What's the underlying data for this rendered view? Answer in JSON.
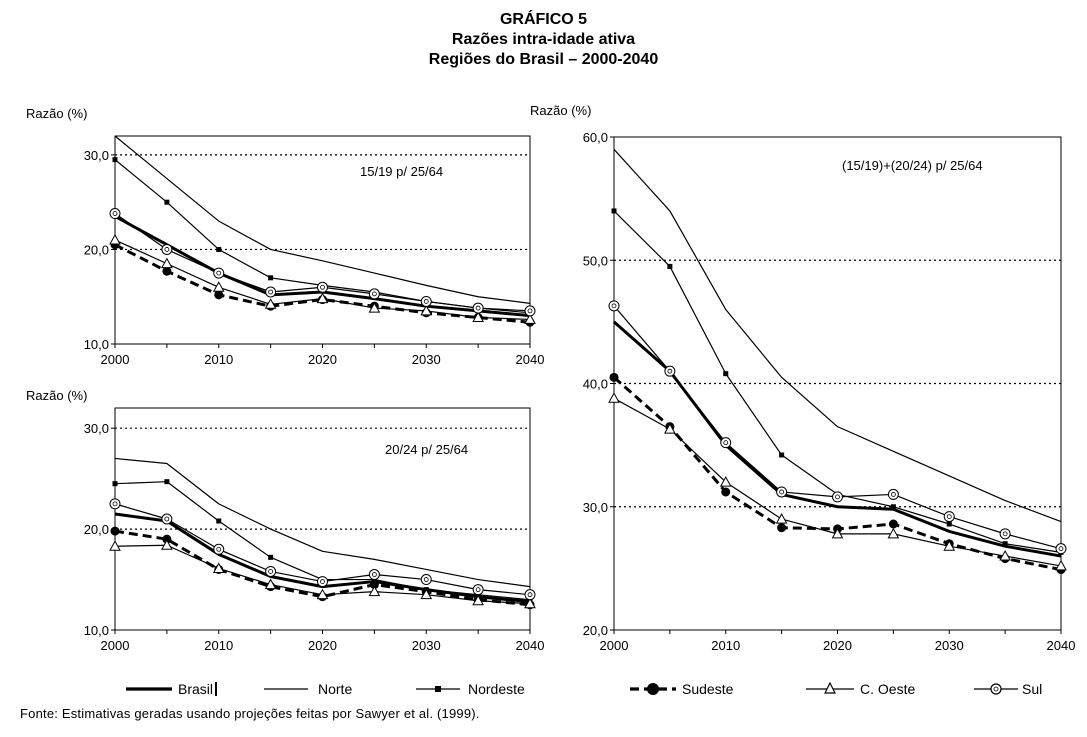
{
  "title": {
    "line1": "GRÁFICO 5",
    "line2": "Razões intra-idade ativa",
    "line3": "Regiões do Brasil – 2000-2040"
  },
  "source": "Fonte: Estimativas geradas usando projeções feitas por Sawyer et al. (1999).",
  "legend": [
    {
      "key": "Brasil",
      "label": "Brasil"
    },
    {
      "key": "Norte",
      "label": "Norte"
    },
    {
      "key": "Nordeste",
      "label": "Nordeste"
    },
    {
      "key": "Sudeste",
      "label": "Sudeste"
    },
    {
      "key": "COeste",
      "label": "C. Oeste"
    },
    {
      "key": "Sul",
      "label": "Sul"
    }
  ],
  "chart_data": [
    {
      "type": "line",
      "ylabel": "Razão (%)",
      "annotation": "15/19 p/ 25/64",
      "x": [
        2000,
        2005,
        2010,
        2015,
        2020,
        2025,
        2030,
        2035,
        2040
      ],
      "xticks": [
        "2000",
        "2010",
        "2020",
        "2030",
        "2040"
      ],
      "yticks": [
        "10,0",
        "20,0",
        "30,0"
      ],
      "ylim": [
        10,
        32
      ],
      "gridlines": [
        20,
        30
      ],
      "series": [
        {
          "name": "Brasil",
          "values": [
            23.5,
            20.5,
            17.5,
            15.2,
            15.5,
            14.8,
            14.0,
            13.5,
            13.0
          ]
        },
        {
          "name": "Norte",
          "values": [
            32.0,
            27.5,
            23.0,
            20.0,
            18.8,
            17.5,
            16.2,
            15.0,
            14.3
          ]
        },
        {
          "name": "Nordeste",
          "values": [
            29.5,
            25.0,
            20.0,
            17.0,
            16.2,
            15.5,
            14.5,
            13.8,
            13.3
          ]
        },
        {
          "name": "Sudeste",
          "values": [
            20.5,
            17.7,
            15.2,
            14.0,
            14.7,
            14.0,
            13.3,
            12.8,
            12.3
          ]
        },
        {
          "name": "C. Oeste",
          "values": [
            21.0,
            18.5,
            16.0,
            14.2,
            14.8,
            13.8,
            13.5,
            12.8,
            12.6
          ]
        },
        {
          "name": "Sul",
          "values": [
            23.8,
            20.0,
            17.5,
            15.5,
            16.0,
            15.3,
            14.5,
            13.8,
            13.5
          ]
        }
      ]
    },
    {
      "type": "line",
      "ylabel": "Razão (%)",
      "annotation": "20/24 p/ 25/64",
      "x": [
        2000,
        2005,
        2010,
        2015,
        2020,
        2025,
        2030,
        2035,
        2040
      ],
      "xticks": [
        "2000",
        "2010",
        "2020",
        "2030",
        "2040"
      ],
      "yticks": [
        "10,0",
        "20,0",
        "30,0"
      ],
      "ylim": [
        10,
        32
      ],
      "gridlines": [
        20,
        30
      ],
      "series": [
        {
          "name": "Brasil",
          "values": [
            21.5,
            20.8,
            17.5,
            15.3,
            14.3,
            14.8,
            14.0,
            13.3,
            12.8
          ]
        },
        {
          "name": "Norte",
          "values": [
            27.0,
            26.5,
            22.5,
            20.0,
            17.8,
            17.0,
            16.0,
            15.0,
            14.3
          ]
        },
        {
          "name": "Nordeste",
          "values": [
            24.5,
            24.7,
            20.8,
            17.2,
            15.0,
            15.0,
            14.0,
            13.5,
            13.0
          ]
        },
        {
          "name": "Sudeste",
          "values": [
            19.8,
            19.0,
            16.0,
            14.3,
            13.3,
            14.5,
            13.8,
            13.0,
            12.5
          ]
        },
        {
          "name": "C. Oeste",
          "values": [
            18.3,
            18.4,
            16.1,
            14.5,
            13.5,
            13.8,
            13.5,
            12.9,
            12.6
          ]
        },
        {
          "name": "Sul",
          "values": [
            22.5,
            21.0,
            18.0,
            15.8,
            14.8,
            15.5,
            15.0,
            14.0,
            13.5
          ]
        }
      ]
    },
    {
      "type": "line",
      "ylabel": "Razão (%)",
      "annotation": "(15/19)+(20/24) p/ 25/64",
      "x": [
        2000,
        2005,
        2010,
        2015,
        2020,
        2025,
        2030,
        2035,
        2040
      ],
      "xticks": [
        "2000",
        "2010",
        "2020",
        "2030",
        "2040"
      ],
      "yticks": [
        "20,0",
        "30,0",
        "40,0",
        "50,0",
        "60,0"
      ],
      "ylim": [
        20,
        60
      ],
      "gridlines": [
        30,
        40,
        50
      ],
      "series": [
        {
          "name": "Brasil",
          "values": [
            45.0,
            41.0,
            35.0,
            31.0,
            30.0,
            29.8,
            28.0,
            26.8,
            26.0
          ]
        },
        {
          "name": "Norte",
          "values": [
            59.0,
            54.0,
            46.0,
            40.5,
            36.5,
            34.5,
            32.5,
            30.5,
            28.8
          ]
        },
        {
          "name": "Nordeste",
          "values": [
            54.0,
            49.5,
            40.8,
            34.2,
            31.0,
            30.0,
            28.6,
            27.0,
            26.3
          ]
        },
        {
          "name": "Sudeste",
          "values": [
            40.5,
            36.5,
            31.2,
            28.3,
            28.2,
            28.6,
            27.0,
            25.8,
            24.9
          ]
        },
        {
          "name": "C. Oeste",
          "values": [
            38.8,
            36.3,
            32.0,
            29.0,
            27.8,
            27.8,
            26.8,
            26.0,
            25.2
          ]
        },
        {
          "name": "Sul",
          "values": [
            46.3,
            41.0,
            35.2,
            31.2,
            30.8,
            31.0,
            29.2,
            27.8,
            26.6
          ]
        }
      ]
    }
  ]
}
